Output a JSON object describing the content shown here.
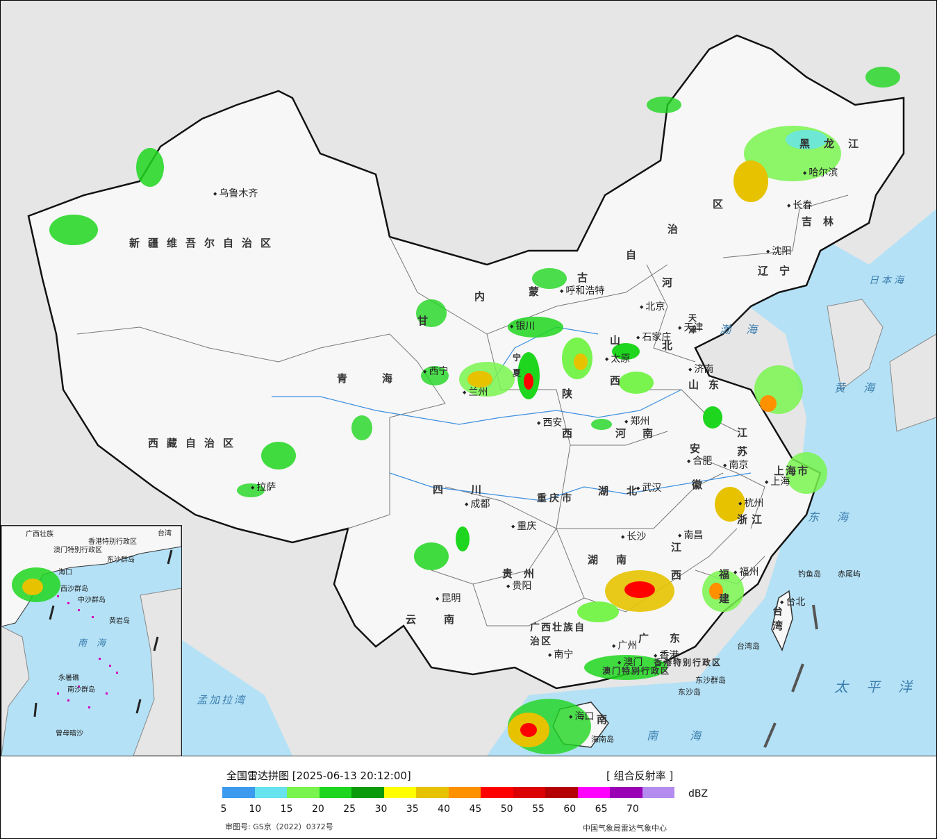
{
  "legend": {
    "title": "全国雷达拼图 [2025-06-13 20:12:00]",
    "product": "[ 组合反射率 ]",
    "unit": "dBZ",
    "ticks": [
      "5",
      "10",
      "15",
      "20",
      "25",
      "30",
      "35",
      "40",
      "45",
      "50",
      "55",
      "60",
      "65",
      "70"
    ],
    "colors": [
      "#3d9bef",
      "#66e3ef",
      "#79f44f",
      "#1fd61f",
      "#0b9a0b",
      "#ffff00",
      "#e6c200",
      "#ff9000",
      "#ff0000",
      "#dc0000",
      "#b40000",
      "#ff00ff",
      "#9a00b4",
      "#b48cef"
    ],
    "approval": "审图号: GS京（2022）0372号",
    "agency": "中国气象局雷达气象中心"
  },
  "map": {
    "provinces": [
      {
        "name": "新疆维吾尔自治区"
      },
      {
        "name": "西藏自治区"
      },
      {
        "name": "青海"
      },
      {
        "name": "甘"
      },
      {
        "name": "内"
      },
      {
        "name": "蒙"
      },
      {
        "name": "古"
      },
      {
        "name": "自"
      },
      {
        "name": "治"
      },
      {
        "name": "区"
      },
      {
        "name": "黑龙江"
      },
      {
        "name": "吉林"
      },
      {
        "name": "辽宁"
      },
      {
        "name": "河"
      },
      {
        "name": "北"
      },
      {
        "name": "山"
      },
      {
        "name": "西"
      },
      {
        "name": "山东"
      },
      {
        "name": "河南"
      },
      {
        "name": "陕"
      },
      {
        "name": "西"
      },
      {
        "name": "四川"
      },
      {
        "name": "重庆市"
      },
      {
        "name": "湖北"
      },
      {
        "name": "安"
      },
      {
        "name": "徽"
      },
      {
        "name": "江"
      },
      {
        "name": "苏"
      },
      {
        "name": "浙江"
      },
      {
        "name": "湖南"
      },
      {
        "name": "江"
      },
      {
        "name": "西"
      },
      {
        "name": "贵州"
      },
      {
        "name": "云南"
      },
      {
        "name": "广西壮族自治区"
      },
      {
        "name": "广东"
      },
      {
        "name": "福"
      },
      {
        "name": "建"
      },
      {
        "name": "台湾"
      },
      {
        "name": "南"
      },
      {
        "name": "上海市"
      },
      {
        "name": "天津"
      },
      {
        "name": "香港特别行政区"
      },
      {
        "name": "澳门特别行政区"
      },
      {
        "name": "宁"
      },
      {
        "name": "夏"
      }
    ],
    "cities": [
      {
        "name": "乌鲁木齐"
      },
      {
        "name": "拉萨"
      },
      {
        "name": "西宁"
      },
      {
        "name": "兰州"
      },
      {
        "name": "银川"
      },
      {
        "name": "呼和浩特"
      },
      {
        "name": "北京"
      },
      {
        "name": "天津"
      },
      {
        "name": "石家庄"
      },
      {
        "name": "太原"
      },
      {
        "name": "济南"
      },
      {
        "name": "郑州"
      },
      {
        "name": "西安"
      },
      {
        "name": "成都"
      },
      {
        "name": "重庆"
      },
      {
        "name": "武汉"
      },
      {
        "name": "合肥"
      },
      {
        "name": "南京"
      },
      {
        "name": "上海"
      },
      {
        "name": "杭州"
      },
      {
        "name": "南昌"
      },
      {
        "name": "长沙"
      },
      {
        "name": "贵阳"
      },
      {
        "name": "昆明"
      },
      {
        "name": "南宁"
      },
      {
        "name": "广州"
      },
      {
        "name": "澳门"
      },
      {
        "name": "香港"
      },
      {
        "name": "福州"
      },
      {
        "name": "台北"
      },
      {
        "name": "海口"
      },
      {
        "name": "哈尔滨"
      },
      {
        "name": "长春"
      },
      {
        "name": "沈阳"
      }
    ],
    "seas": [
      {
        "name": "日本海"
      },
      {
        "name": "渤海"
      },
      {
        "name": "黄海"
      },
      {
        "name": "东海"
      },
      {
        "name": "太平洋"
      },
      {
        "name": "南海"
      },
      {
        "name": "孟加拉湾"
      }
    ],
    "islands": [
      {
        "name": "钓鱼岛"
      },
      {
        "name": "赤尾屿"
      },
      {
        "name": "台湾岛"
      },
      {
        "name": "东沙群岛"
      },
      {
        "name": "东沙岛"
      },
      {
        "name": "海南岛"
      }
    ],
    "inset": {
      "labels": [
        {
          "name": "广西壮族"
        },
        {
          "name": "香港特别行政区"
        },
        {
          "name": "澳门特别行政区"
        },
        {
          "name": "东沙群岛"
        },
        {
          "name": "海口"
        },
        {
          "name": "西沙群岛"
        },
        {
          "name": "中沙群岛"
        },
        {
          "name": "黄岩岛"
        },
        {
          "name": "南海"
        },
        {
          "name": "永暑礁"
        },
        {
          "name": "南沙群岛"
        },
        {
          "name": "曾母暗沙"
        },
        {
          "name": "台湾"
        }
      ]
    }
  }
}
